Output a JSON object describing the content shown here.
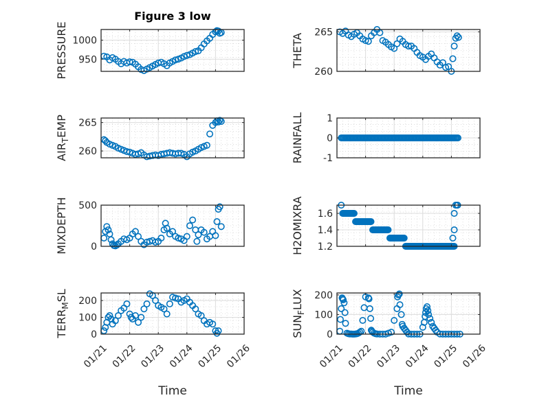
{
  "figure": {
    "title": "Figure 3 low",
    "marker_color": "#0072BD",
    "grid_color": "#e0e0e0",
    "axis_color": "#262626"
  },
  "chart_data": [
    {
      "type": "scatter",
      "id": "pressure",
      "title": "Figure 3 low",
      "ylabel": "PRESSURE",
      "ylabel_main": "PRESSURE",
      "ylabel_sub": "",
      "ylabel_tail": "",
      "xlabel": "",
      "ylim": [
        918,
        1028
      ],
      "yticks": [
        950,
        1000
      ],
      "yticklabels": [
        "950",
        "1000"
      ],
      "xlim": [
        0,
        5
      ],
      "xticks": [
        0,
        1,
        2,
        3,
        4,
        5
      ],
      "xticklabels": [],
      "grid": true,
      "x": [
        0.1,
        0.2,
        0.3,
        0.4,
        0.5,
        0.6,
        0.7,
        0.8,
        0.9,
        1.0,
        1.1,
        1.2,
        1.3,
        1.4,
        1.5,
        1.6,
        1.7,
        1.8,
        1.9,
        2.0,
        2.1,
        2.2,
        2.3,
        2.4,
        2.5,
        2.6,
        2.7,
        2.8,
        2.9,
        3.0,
        3.1,
        3.2,
        3.3,
        3.4,
        3.5,
        3.6,
        3.7,
        3.8,
        3.9,
        4.0,
        4.05,
        4.1,
        4.15,
        4.2
      ],
      "y": [
        958,
        956,
        948,
        954,
        950,
        944,
        938,
        944,
        940,
        943,
        942,
        937,
        930,
        923,
        920,
        924,
        928,
        932,
        936,
        940,
        942,
        938,
        933,
        940,
        944,
        948,
        950,
        953,
        957,
        960,
        962,
        966,
        970,
        972,
        980,
        990,
        998,
        1005,
        1015,
        1022,
        1025,
        1024,
        1018,
        1020
      ]
    },
    {
      "type": "scatter",
      "id": "theta",
      "ylabel": "THETA",
      "ylabel_main": "THETA",
      "ylabel_sub": "",
      "ylabel_tail": "",
      "xlabel": "",
      "ylim": [
        260,
        265.3
      ],
      "yticks": [
        260,
        265
      ],
      "yticklabels": [
        "260",
        "265"
      ],
      "xlim": [
        0,
        5
      ],
      "xticks": [
        0,
        1,
        2,
        3,
        4,
        5
      ],
      "xticklabels": [],
      "grid": true,
      "x": [
        0.1,
        0.2,
        0.3,
        0.4,
        0.5,
        0.6,
        0.7,
        0.8,
        0.9,
        1.0,
        1.1,
        1.2,
        1.3,
        1.4,
        1.5,
        1.6,
        1.7,
        1.8,
        1.9,
        2.0,
        2.1,
        2.2,
        2.3,
        2.4,
        2.5,
        2.6,
        2.7,
        2.8,
        2.9,
        3.0,
        3.1,
        3.2,
        3.3,
        3.4,
        3.5,
        3.6,
        3.7,
        3.8,
        3.9,
        4.0,
        4.05,
        4.1,
        4.15,
        4.2,
        4.25
      ],
      "y": [
        265,
        264.8,
        265.1,
        264.6,
        264.4,
        264.7,
        264.9,
        264.5,
        264.1,
        263.9,
        263.8,
        264.5,
        264.9,
        265.3,
        264.9,
        263.9,
        263.7,
        263.4,
        263.1,
        262.9,
        263.5,
        264.1,
        263.8,
        263.4,
        263.2,
        263.2,
        262.9,
        262.4,
        262.0,
        261.8,
        261.5,
        261.9,
        262.2,
        261.7,
        261.2,
        260.8,
        261.1,
        260.5,
        260.6,
        260.0,
        261.6,
        263.2,
        264.2,
        264.5,
        264.3
      ]
    },
    {
      "type": "scatter",
      "id": "air_temp",
      "ylabel": "AIR_TEMP",
      "ylabel_main": "AIR",
      "ylabel_sub": "T",
      "ylabel_tail": "EMP",
      "xlabel": "",
      "ylim": [
        258.8,
        265.8
      ],
      "yticks": [
        260,
        265
      ],
      "yticklabels": [
        "260",
        "265"
      ],
      "xlim": [
        0,
        5
      ],
      "xticks": [
        0,
        1,
        2,
        3,
        4,
        5
      ],
      "xticklabels": [],
      "grid": true,
      "x": [
        0.1,
        0.15,
        0.2,
        0.3,
        0.4,
        0.5,
        0.6,
        0.7,
        0.8,
        0.9,
        1.0,
        1.1,
        1.2,
        1.3,
        1.4,
        1.5,
        1.6,
        1.7,
        1.8,
        1.9,
        2.0,
        2.1,
        2.2,
        2.3,
        2.4,
        2.5,
        2.6,
        2.7,
        2.8,
        2.9,
        3.0,
        3.1,
        3.2,
        3.3,
        3.4,
        3.5,
        3.6,
        3.7,
        3.8,
        3.9,
        4.0,
        4.05,
        4.1,
        4.15,
        4.2
      ],
      "y": [
        262,
        261.8,
        261.5,
        261.2,
        261.0,
        260.8,
        260.5,
        260.3,
        260.1,
        259.9,
        259.8,
        259.6,
        259.4,
        259.5,
        259.7,
        259.3,
        259.0,
        259.1,
        259.2,
        259.3,
        259.2,
        259.4,
        259.5,
        259.6,
        259.7,
        259.6,
        259.5,
        259.6,
        259.6,
        259.4,
        259.0,
        259.5,
        259.8,
        260.0,
        260.3,
        260.6,
        260.8,
        261.0,
        263.0,
        264.5,
        265.0,
        265.3,
        265.1,
        265.4,
        265.2
      ]
    },
    {
      "type": "scatter",
      "id": "rainfall",
      "ylabel": "RAINFALL",
      "ylabel_main": "RAINFALL",
      "ylabel_sub": "",
      "ylabel_tail": "",
      "xlabel": "",
      "ylim": [
        -1,
        1
      ],
      "yticks": [
        -1,
        0,
        1
      ],
      "yticklabels": [
        "-1",
        "0",
        "1"
      ],
      "xlim": [
        0,
        5
      ],
      "xticks": [
        0,
        1,
        2,
        3,
        4,
        5
      ],
      "xticklabels": [],
      "grid": true,
      "x_range": [
        0.15,
        4.25
      ],
      "x_step": 0.04,
      "constant_y": 0
    },
    {
      "type": "scatter",
      "id": "mixdepth",
      "ylabel": "MIXDEPTH",
      "ylabel_main": "MIXDEPTH",
      "ylabel_sub": "",
      "ylabel_tail": "",
      "xlabel": "",
      "ylim": [
        0,
        500
      ],
      "yticks": [
        0,
        500
      ],
      "yticklabels": [
        "0",
        "500"
      ],
      "xlim": [
        0,
        5
      ],
      "xticks": [
        0,
        1,
        2,
        3,
        4,
        5
      ],
      "xticklabels": [],
      "grid": true,
      "x": [
        0.1,
        0.15,
        0.2,
        0.25,
        0.3,
        0.35,
        0.4,
        0.45,
        0.5,
        0.55,
        0.6,
        0.7,
        0.8,
        0.9,
        1.0,
        1.1,
        1.2,
        1.3,
        1.4,
        1.5,
        1.6,
        1.7,
        1.8,
        1.9,
        2.0,
        2.1,
        2.2,
        2.25,
        2.3,
        2.4,
        2.5,
        2.6,
        2.7,
        2.8,
        2.9,
        3.0,
        3.1,
        3.2,
        3.3,
        3.35,
        3.4,
        3.5,
        3.6,
        3.7,
        3.8,
        3.9,
        4.0,
        4.05,
        4.1,
        4.15,
        4.2
      ],
      "y": [
        100,
        180,
        240,
        200,
        150,
        80,
        30,
        10,
        5,
        15,
        30,
        60,
        90,
        80,
        100,
        150,
        180,
        120,
        60,
        20,
        50,
        60,
        70,
        50,
        60,
        100,
        200,
        280,
        220,
        150,
        180,
        120,
        100,
        90,
        70,
        120,
        250,
        320,
        200,
        60,
        140,
        200,
        170,
        90,
        120,
        180,
        130,
        300,
        450,
        480,
        240
      ]
    },
    {
      "type": "scatter",
      "id": "h2omixra",
      "ylabel": "H2OMIXRA",
      "ylabel_main": "H2OMIXRA",
      "ylabel_sub": "",
      "ylabel_tail": "",
      "xlabel": "",
      "ylim": [
        1.2,
        1.7
      ],
      "yticks": [
        1.2,
        1.4,
        1.6
      ],
      "yticklabels": [
        "1.2",
        "1.4",
        "1.6"
      ],
      "xlim": [
        0,
        5
      ],
      "xticks": [
        0,
        1,
        2,
        3,
        4,
        5
      ],
      "xticklabels": [],
      "grid": true,
      "segments": [
        {
          "x0": 0.15,
          "x1": 0.15,
          "y": 1.7
        },
        {
          "x0": 0.2,
          "x1": 0.6,
          "y": 1.6
        },
        {
          "x0": 0.65,
          "x1": 1.2,
          "y": 1.5
        },
        {
          "x0": 1.25,
          "x1": 1.8,
          "y": 1.4
        },
        {
          "x0": 1.85,
          "x1": 2.35,
          "y": 1.3
        },
        {
          "x0": 2.4,
          "x1": 4.1,
          "y": 1.2
        }
      ],
      "extra_x": [
        4.05,
        4.1,
        4.1,
        4.15,
        4.2,
        4.22
      ],
      "extra_y": [
        1.3,
        1.4,
        1.6,
        1.7,
        1.7,
        1.7
      ]
    },
    {
      "type": "scatter",
      "id": "terr_msl",
      "ylabel": "TERR_MSL",
      "ylabel_main": "TERR",
      "ylabel_sub": "M",
      "ylabel_tail": "SL",
      "xlabel": "Time",
      "ylim": [
        0,
        245
      ],
      "yticks": [
        0,
        100,
        200
      ],
      "yticklabels": [
        "0",
        "100",
        "200"
      ],
      "xlim": [
        0,
        5
      ],
      "xticks": [
        0,
        1,
        2,
        3,
        4,
        5
      ],
      "xticklabels": [
        "01/21",
        "01/22",
        "01/23",
        "01/24",
        "01/25",
        "01/26"
      ],
      "grid": true,
      "x": [
        0.1,
        0.15,
        0.2,
        0.25,
        0.3,
        0.35,
        0.4,
        0.5,
        0.6,
        0.7,
        0.8,
        0.9,
        1.0,
        1.05,
        1.1,
        1.2,
        1.3,
        1.4,
        1.5,
        1.6,
        1.7,
        1.8,
        1.9,
        2.0,
        2.1,
        2.2,
        2.3,
        2.4,
        2.5,
        2.6,
        2.7,
        2.8,
        2.9,
        3.0,
        3.1,
        3.2,
        3.3,
        3.4,
        3.5,
        3.6,
        3.7,
        3.8,
        3.9,
        4.0,
        4.05,
        4.1
      ],
      "y": [
        20,
        40,
        70,
        100,
        110,
        90,
        60,
        80,
        110,
        140,
        155,
        180,
        120,
        100,
        90,
        110,
        70,
        100,
        150,
        180,
        240,
        230,
        200,
        170,
        160,
        150,
        120,
        180,
        220,
        215,
        210,
        190,
        200,
        210,
        190,
        170,
        150,
        120,
        110,
        80,
        60,
        70,
        60,
        20,
        5,
        20
      ]
    },
    {
      "type": "scatter",
      "id": "sun_flux",
      "ylabel": "SUN_FLUX",
      "ylabel_main": "SUN",
      "ylabel_sub": "F",
      "ylabel_tail": "LUX",
      "xlabel": "Time",
      "ylim": [
        0,
        210
      ],
      "yticks": [
        0,
        100,
        200
      ],
      "yticklabels": [
        "0",
        "100",
        "200"
      ],
      "xlim": [
        0,
        5
      ],
      "xticks": [
        0,
        1,
        2,
        3,
        4,
        5
      ],
      "xticklabels": [
        "01/21",
        "01/22",
        "01/23",
        "01/24",
        "01/25",
        "01/26"
      ],
      "grid": true,
      "x": [
        0.1,
        0.12,
        0.15,
        0.18,
        0.2,
        0.22,
        0.25,
        0.28,
        0.3,
        0.35,
        0.4,
        0.45,
        0.5,
        0.55,
        0.6,
        0.65,
        0.7,
        0.75,
        0.8,
        0.85,
        0.9,
        0.95,
        1.0,
        1.1,
        1.12,
        1.15,
        1.18,
        1.2,
        1.22,
        1.25,
        1.3,
        1.35,
        1.4,
        1.5,
        1.6,
        1.7,
        1.8,
        1.9,
        2.0,
        2.1,
        2.12,
        2.15,
        2.18,
        2.2,
        2.25,
        2.28,
        2.3,
        2.35,
        2.4,
        2.45,
        2.5,
        2.6,
        2.7,
        2.8,
        2.9,
        3.0,
        3.05,
        3.08,
        3.1,
        3.12,
        3.15,
        3.18,
        3.2,
        3.25,
        3.3,
        3.35,
        3.4,
        3.45,
        3.5,
        3.6,
        3.7,
        3.8,
        3.9,
        4.0,
        4.1,
        4.2,
        4.3
      ],
      "y": [
        15,
        75,
        130,
        185,
        180,
        175,
        160,
        110,
        55,
        5,
        2,
        1,
        1,
        0,
        0,
        1,
        2,
        5,
        10,
        15,
        70,
        135,
        190,
        185,
        180,
        130,
        80,
        20,
        15,
        10,
        5,
        2,
        1,
        0,
        0,
        0,
        5,
        10,
        70,
        130,
        190,
        200,
        205,
        150,
        100,
        50,
        40,
        30,
        20,
        10,
        1,
        0,
        0,
        0,
        0,
        35,
        60,
        90,
        110,
        130,
        140,
        120,
        100,
        80,
        60,
        40,
        30,
        20,
        10,
        1,
        0,
        0,
        0,
        0,
        0,
        0,
        0
      ]
    }
  ]
}
